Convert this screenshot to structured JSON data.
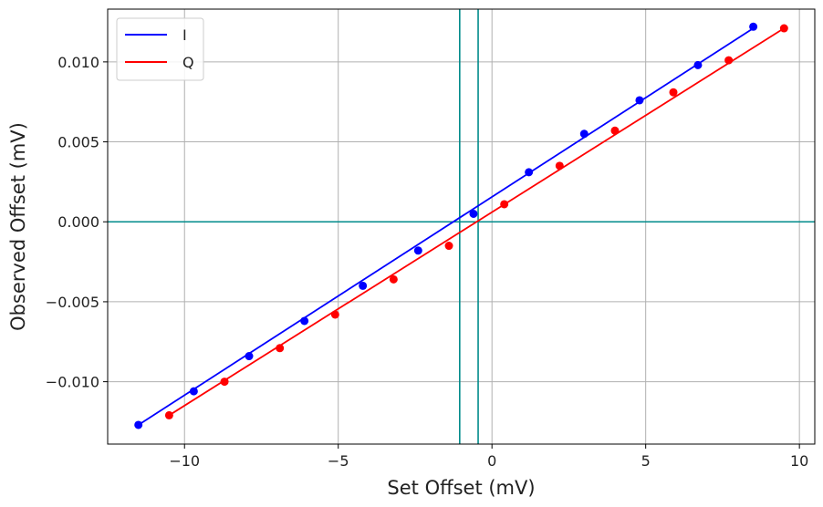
{
  "chart_data": {
    "type": "scatter",
    "xlabel": "Set Offset (mV)",
    "ylabel": "Observed Offset (mV)",
    "xlim": [
      -12.5,
      10.5
    ],
    "ylim": [
      -0.0139,
      0.0133
    ],
    "x_ticks": [
      -10,
      -5,
      0,
      5,
      10
    ],
    "x_tick_labels": [
      "−10",
      "−5",
      "0",
      "5",
      "10"
    ],
    "y_ticks": [
      -0.01,
      -0.005,
      0.0,
      0.005,
      0.01
    ],
    "y_tick_labels": [
      "−0.010",
      "−0.005",
      "0.000",
      "0.005",
      "0.010"
    ],
    "grid": true,
    "legend_position": "top-left",
    "series": [
      {
        "name": "I",
        "color": "#0000ff",
        "x": [
          -11.5,
          -9.7,
          -7.9,
          -6.1,
          -4.2,
          -2.4,
          -0.6,
          1.2,
          3.0,
          4.8,
          6.7,
          8.5
        ],
        "y": [
          -0.0127,
          -0.0106,
          -0.0084,
          -0.0062,
          -0.004,
          -0.0018,
          0.0005,
          0.0031,
          0.0055,
          0.0076,
          0.0098,
          0.0122
        ],
        "fit": {
          "x": [
            -11.5,
            8.5
          ],
          "y": [
            -0.0127,
            0.0121
          ]
        }
      },
      {
        "name": "Q",
        "color": "#ff0000",
        "x": [
          -10.5,
          -8.7,
          -6.9,
          -5.1,
          -3.2,
          -1.4,
          0.4,
          2.2,
          4.0,
          5.9,
          7.7,
          9.5
        ],
        "y": [
          -0.0121,
          -0.01,
          -0.0079,
          -0.0058,
          -0.0036,
          -0.0015,
          0.0011,
          0.0035,
          0.0057,
          0.0081,
          0.0101,
          0.0121
        ],
        "fit": {
          "x": [
            -10.5,
            9.5
          ],
          "y": [
            -0.0121,
            0.0121
          ]
        }
      }
    ],
    "reference_lines": {
      "color": "#008b8b",
      "horizontal": [
        0.0
      ],
      "vertical": [
        -1.05,
        -0.45
      ]
    }
  }
}
